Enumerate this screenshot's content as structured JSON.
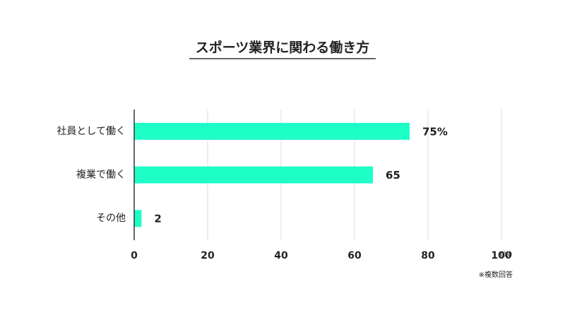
{
  "chart_data": {
    "type": "bar",
    "orientation": "horizontal",
    "title": "スポーツ業界に関わる働き方",
    "categories": [
      "社員として働く",
      "複業で働く",
      "その他"
    ],
    "values": [
      75,
      65,
      2
    ],
    "value_labels": [
      "75%",
      "65",
      "2"
    ],
    "color": "#1effc8",
    "xlim": [
      0,
      100
    ],
    "xticks": [
      0,
      20,
      40,
      60,
      80,
      100
    ],
    "x_unit": "(%)",
    "note": "※複数回答",
    "grid": true
  }
}
